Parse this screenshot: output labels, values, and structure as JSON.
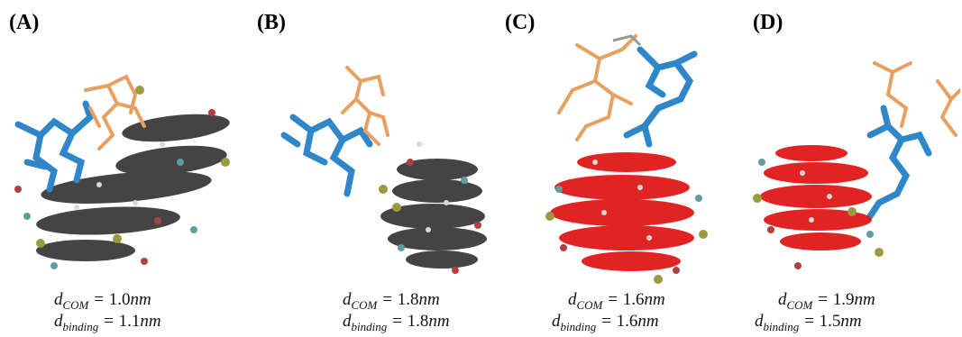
{
  "colors": {
    "stack_dark": "#3a3a3a",
    "stack_red": "#e01818",
    "ligand_blue": "#2f86c8",
    "ligand_orange": "#e8a060",
    "atom_red": "#b04040",
    "atom_teal": "#5f9ea0",
    "atom_olive": "#9a9a40",
    "atom_white": "#d8d8d8"
  },
  "panels": [
    {
      "label": "(A)",
      "stack": "dark",
      "d_com": {
        "sub": "COM",
        "value": "1.0",
        "unit": "nm"
      },
      "d_binding": {
        "sub": "binding",
        "value": "1.1",
        "unit": "nm"
      }
    },
    {
      "label": "(B)",
      "stack": "dark",
      "d_com": {
        "sub": "COM",
        "value": "1.8",
        "unit": "nm"
      },
      "d_binding": {
        "sub": "binding",
        "value": "1.8",
        "unit": "nm"
      }
    },
    {
      "label": "(C)",
      "stack": "red",
      "d_com": {
        "sub": "COM",
        "value": "1.6",
        "unit": "nm"
      },
      "d_binding": {
        "sub": "binding",
        "value": "1.6",
        "unit": "nm"
      }
    },
    {
      "label": "(D)",
      "stack": "red",
      "d_com": {
        "sub": "COM",
        "value": "1.9",
        "unit": "nm"
      },
      "d_binding": {
        "sub": "binding",
        "value": "1.5",
        "unit": "nm"
      }
    }
  ]
}
